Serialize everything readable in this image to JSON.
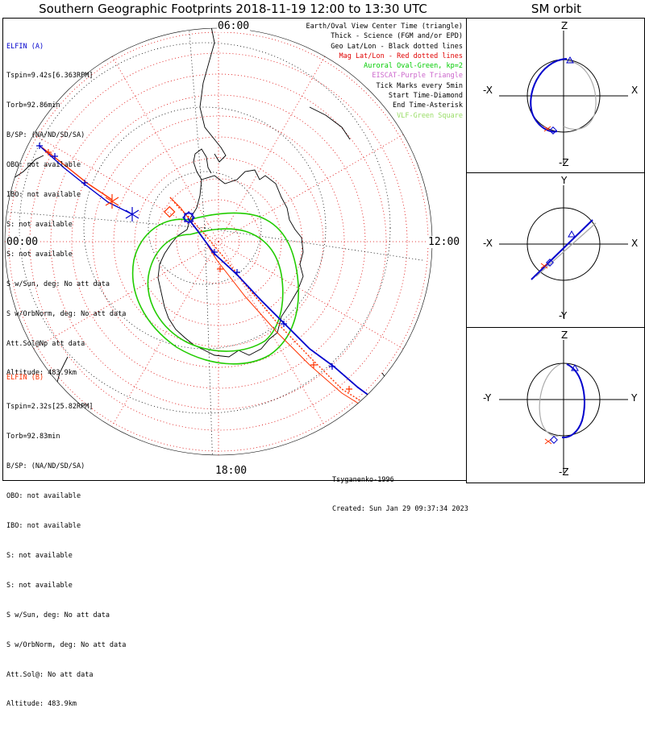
{
  "header": {
    "title": "Southern Geographic Footprints 2018-11-19 12:00 to 13:30 UTC",
    "sm_title": "SM orbit"
  },
  "map": {
    "hour_labels": {
      "top": "06:00",
      "left": "00:00",
      "right": "12:00",
      "bottom": "18:00"
    }
  },
  "elfin_a": {
    "name": "ELFIN (A)",
    "color": "#0000cc",
    "lines": [
      "Tspin=9.42s[6.363RPM]",
      "Torb=92.86min",
      "B/SP: (NA/ND/SD/SA)",
      "OBO: not available",
      "IBO: not available",
      "S: not available",
      "S: not available",
      "S w/Sun, deg: No att data",
      "S w/OrbNorm, deg: No att data",
      "Att.Sol@Np att data",
      "Altitude: 483.9km"
    ]
  },
  "elfin_b": {
    "name": "ELFIN (B)",
    "color": "#ff3300",
    "lines": [
      "Tspin=2.32s[25.82RPM]",
      "Torb=92.83min",
      "B/SP: (NA/ND/SD/SA)",
      "OBO: not available",
      "IBO: not available",
      "S: not available",
      "S: not available",
      "S w/Sun, deg: No att data",
      "S w/OrbNorm, deg: No att data",
      "Att.Sol@: No att data",
      "Altitude: 483.9km"
    ]
  },
  "legend": [
    {
      "text": "Earth/Oval View Center Time (triangle)",
      "color": "#000000"
    },
    {
      "text": "Thick - Science (FGM and/or EPD)",
      "color": "#000000"
    },
    {
      "text": "Geo Lat/Lon - Black dotted lines",
      "color": "#000000"
    },
    {
      "text": "Mag Lat/Lon - Red dotted lines",
      "color": "#e00000"
    },
    {
      "text": "Auroral Oval-Green, kp=2",
      "color": "#00cc00"
    },
    {
      "text": "EISCAT-Purple Triangle",
      "color": "#cc66cc"
    },
    {
      "text": "Tick Marks every 5min",
      "color": "#000000"
    },
    {
      "text": "Start Time-Diamond",
      "color": "#000000"
    },
    {
      "text": "End Time-Asterisk",
      "color": "#000000"
    },
    {
      "text": "VLF-Green Square",
      "color": "#99dd66"
    }
  ],
  "footer": {
    "model": "Tsyganenko-1996",
    "created": "Created: Sun Jan 29 09:37:34 2023"
  },
  "sm_panels": [
    {
      "top": "Z",
      "bottom": "-Z",
      "left": "-X",
      "right": "X"
    },
    {
      "top": "Y",
      "bottom": "-Y",
      "left": "-X",
      "right": "X"
    },
    {
      "top": "Z",
      "bottom": "-Z",
      "left": "-Y",
      "right": "Y"
    }
  ],
  "colors": {
    "elfin_a": "#0000cc",
    "elfin_b": "#ff3300",
    "mag_grid": "#dd0000",
    "oval": "#22cc00",
    "geo_grid": "#000000"
  }
}
